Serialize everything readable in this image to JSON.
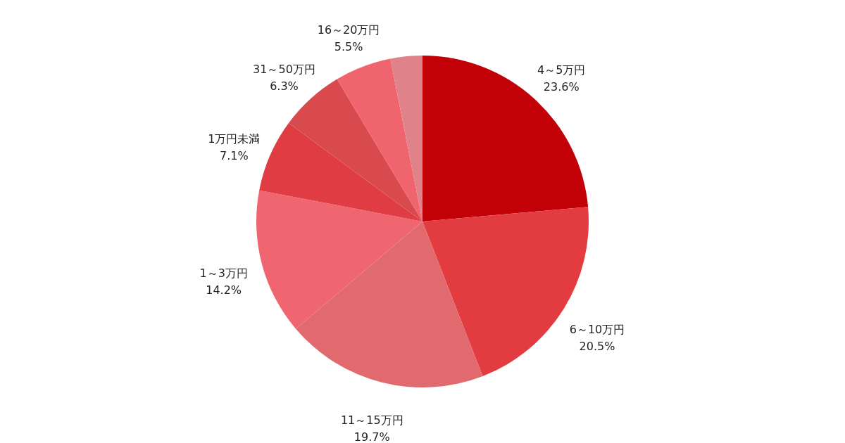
{
  "chart_data": {
    "type": "pie",
    "categories": [
      "4～5万円",
      "6～10万円",
      "11～15万円",
      "1～3万円",
      "1万円未満",
      "31～50万円",
      "16～20万円",
      null
    ],
    "values": [
      23.6,
      20.5,
      19.7,
      14.2,
      7.1,
      6.3,
      5.5,
      3.1
    ],
    "value_labels": [
      "23.6%",
      "20.5%",
      "19.7%",
      "14.2%",
      "7.1%",
      "6.3%",
      "5.5%",
      null
    ],
    "colors": [
      "#c20008",
      "#e23c40",
      "#e06a6e",
      "#f06670",
      "#e03c44",
      "#d94a4e",
      "#f0656d",
      "#e0828a"
    ]
  }
}
